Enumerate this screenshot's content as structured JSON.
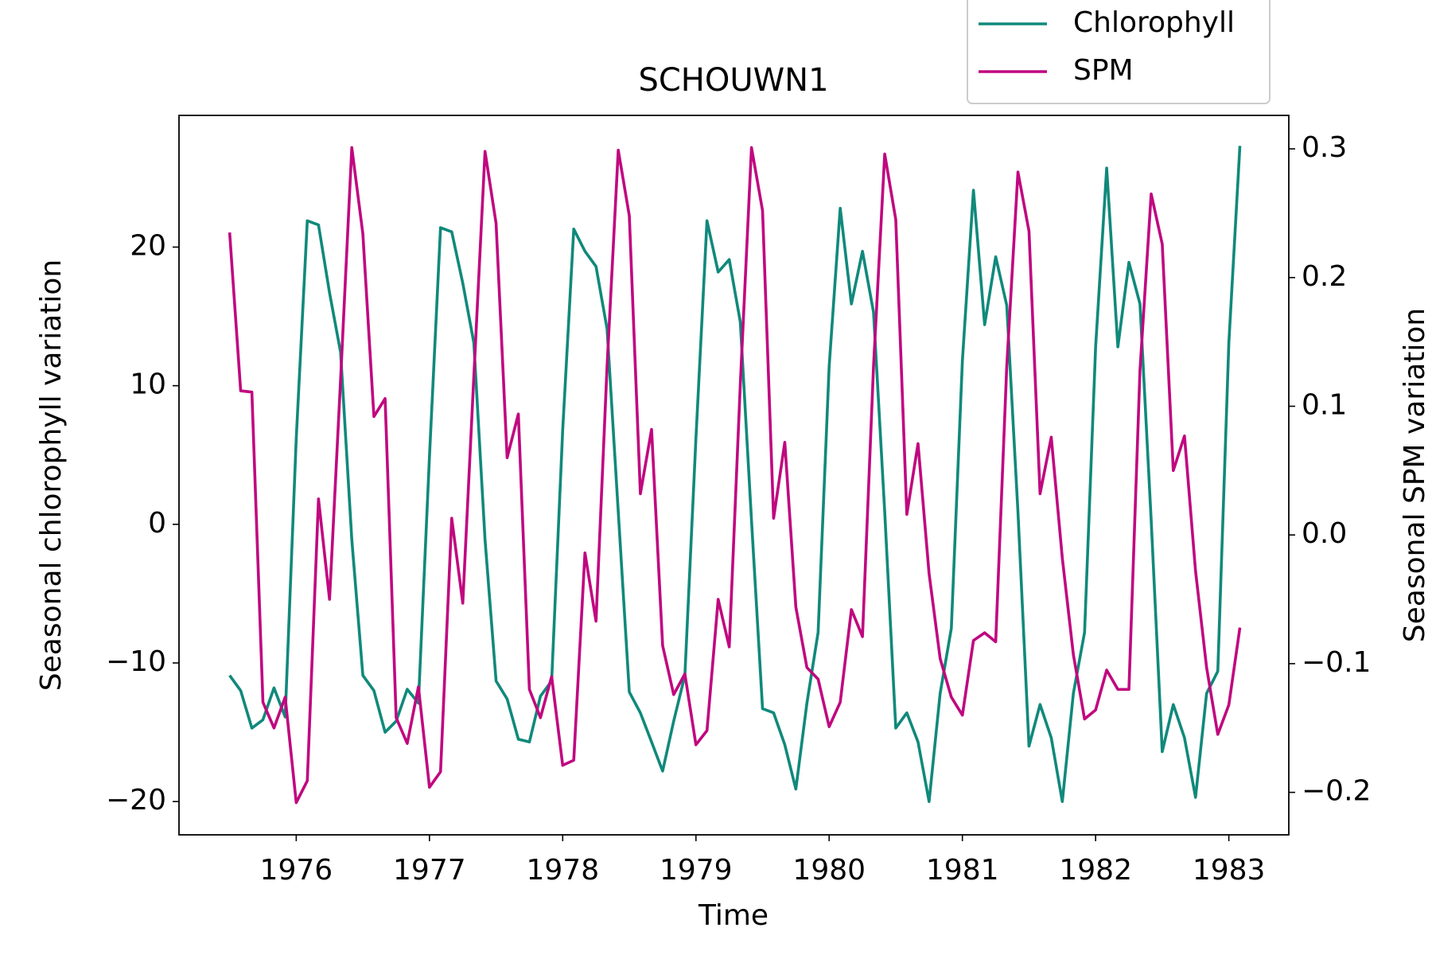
{
  "chart_data": {
    "type": "line",
    "title": "SCHOUWN1",
    "xlabel": "Time",
    "ylabel": "Seasonal chlorophyll variation",
    "y2label": "Seasonal SPM variation",
    "x": [
      1975.5,
      1975.583,
      1975.667,
      1975.75,
      1975.833,
      1975.917,
      1976,
      1976.083,
      1976.167,
      1976.25,
      1976.333,
      1976.417,
      1976.5,
      1976.583,
      1976.667,
      1976.75,
      1976.833,
      1976.917,
      1977,
      1977.083,
      1977.167,
      1977.25,
      1977.333,
      1977.417,
      1977.5,
      1977.583,
      1977.667,
      1977.75,
      1977.833,
      1977.917,
      1978,
      1978.083,
      1978.167,
      1978.25,
      1978.333,
      1978.417,
      1978.5,
      1978.583,
      1978.667,
      1978.75,
      1978.833,
      1978.917,
      1979,
      1979.083,
      1979.167,
      1979.25,
      1979.333,
      1979.417,
      1979.5,
      1979.583,
      1979.667,
      1979.75,
      1979.833,
      1979.917,
      1980,
      1980.083,
      1980.167,
      1980.25,
      1980.333,
      1980.417,
      1980.5,
      1980.583,
      1980.667,
      1980.75,
      1980.833,
      1980.917,
      1981,
      1981.083,
      1981.167,
      1981.25,
      1981.333,
      1981.417,
      1981.5,
      1981.583,
      1981.667,
      1981.75,
      1981.833,
      1981.917,
      1982,
      1982.083,
      1982.167,
      1982.25,
      1982.333,
      1982.417,
      1982.5,
      1982.583,
      1982.667,
      1982.75,
      1982.833,
      1982.917,
      1983,
      1983.083
    ],
    "series": [
      {
        "name": "Chlorophyll",
        "color": "#10897b",
        "axis": "y",
        "values": [
          -10.9,
          -12.0,
          -14.7,
          -14.1,
          -11.8,
          -13.9,
          6.2,
          21.9,
          21.6,
          16.7,
          12.4,
          -1.1,
          -10.9,
          -12.0,
          -15.0,
          -14.2,
          -11.9,
          -12.9,
          4.9,
          21.4,
          21.1,
          17.4,
          13.1,
          -1.1,
          -11.3,
          -12.6,
          -15.5,
          -15.7,
          -12.4,
          -11.3,
          6.8,
          21.3,
          19.7,
          18.6,
          14.1,
          0.9,
          -12.1,
          -13.6,
          -15.7,
          -17.8,
          -14.2,
          -10.9,
          6.2,
          21.9,
          18.2,
          19.1,
          14.6,
          0.3,
          -13.3,
          -13.6,
          -15.9,
          -19.1,
          -12.9,
          -7.8,
          11.4,
          22.8,
          15.9,
          19.7,
          15.3,
          0.9,
          -14.7,
          -13.6,
          -15.7,
          -20.0,
          -12.2,
          -7.5,
          11.8,
          24.1,
          14.4,
          19.3,
          15.8,
          0.9,
          -16.0,
          -13.0,
          -15.4,
          -20.0,
          -12.2,
          -7.8,
          12.8,
          25.7,
          12.8,
          18.9,
          15.9,
          0.3,
          -16.4,
          -13.0,
          -15.4,
          -19.7,
          -12.2,
          -10.6,
          13.1,
          27.3
        ]
      },
      {
        "name": "SPM",
        "color": "#c0077f",
        "axis": "y2",
        "values": [
          0.235,
          0.112,
          0.111,
          -0.13,
          -0.15,
          -0.126,
          -0.208,
          -0.191,
          0.028,
          -0.05,
          0.121,
          0.301,
          0.234,
          0.092,
          0.106,
          -0.142,
          -0.162,
          -0.118,
          -0.196,
          -0.184,
          0.013,
          -0.053,
          0.123,
          0.298,
          0.242,
          0.06,
          0.094,
          -0.12,
          -0.142,
          -0.11,
          -0.179,
          -0.175,
          -0.014,
          -0.067,
          0.131,
          0.299,
          0.248,
          0.032,
          0.082,
          -0.086,
          -0.124,
          -0.108,
          -0.163,
          -0.152,
          -0.05,
          -0.087,
          0.117,
          0.301,
          0.252,
          0.013,
          0.072,
          -0.056,
          -0.103,
          -0.112,
          -0.149,
          -0.13,
          -0.058,
          -0.079,
          0.131,
          0.296,
          0.245,
          0.016,
          0.071,
          -0.03,
          -0.096,
          -0.126,
          -0.14,
          -0.082,
          -0.076,
          -0.083,
          0.131,
          0.282,
          0.236,
          0.032,
          0.076,
          -0.018,
          -0.093,
          -0.143,
          -0.136,
          -0.105,
          -0.12,
          -0.12,
          0.128,
          0.265,
          0.226,
          0.05,
          0.077,
          -0.028,
          -0.103,
          -0.155,
          -0.132,
          -0.072
        ]
      }
    ],
    "xlim": [
      1975.12,
      1983.45
    ],
    "xticks": [
      1976,
      1977,
      1978,
      1979,
      1980,
      1981,
      1982,
      1983
    ],
    "ylim": [
      -22.4,
      29.5
    ],
    "yticks": [
      {
        "value": -20,
        "label": "−20"
      },
      {
        "value": -10,
        "label": "−10"
      },
      0,
      10,
      20
    ],
    "y2lim": [
      -0.233,
      0.326
    ],
    "y2ticks": [
      {
        "value": -0.2,
        "label": "−0.2"
      },
      {
        "value": -0.1,
        "label": "−0.1"
      },
      {
        "value": 0,
        "label": "0.0"
      },
      0.1,
      0.2,
      0.3
    ],
    "legend": "top right"
  }
}
